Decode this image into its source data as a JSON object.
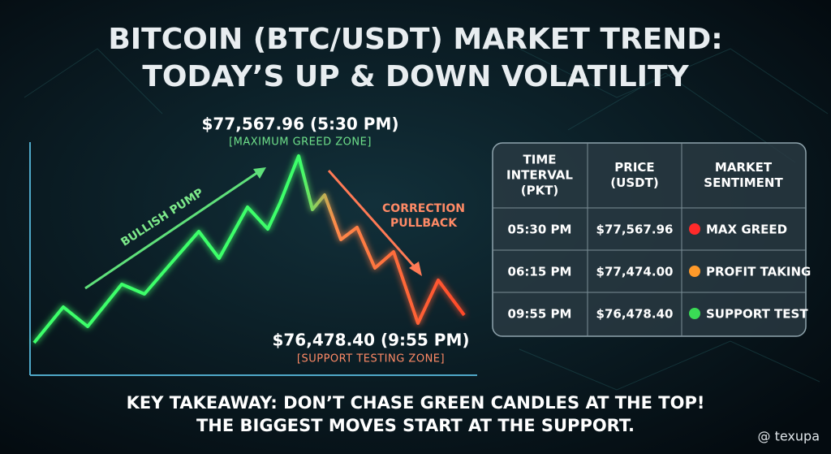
{
  "header": {
    "title": [
      "BITCOIN (BTC/USDT) MARKET TREND:",
      "TODAY’S UP & DOWN VOLATILITY"
    ]
  },
  "chart": {
    "bullish_label": "BULLISH PUMP",
    "correction_label": [
      "CORRECTION",
      "PULLBACK"
    ],
    "peak": {
      "label": "$77,567.96 (5:30 PM)",
      "zone": "[MAXIMUM GREED ZONE]"
    },
    "low": {
      "label": "$76,478.40 (9:55 PM)",
      "zone": "[SUPPORT TESTING ZONE]"
    }
  },
  "table": {
    "headers": [
      [
        "TIME",
        "INTERVAL",
        "(PKT)"
      ],
      [
        "PRICE",
        "(USDT)"
      ],
      [
        "MARKET",
        "SENTIMENT"
      ]
    ],
    "rows": [
      [
        "05:30 PM",
        "$77,567.96",
        "MAX GREED"
      ],
      [
        "06:15 PM",
        "$77,474.00",
        "PROFIT TAKING"
      ],
      [
        "09:55 PM",
        "$76,478.40",
        "SUPPORT TEST"
      ]
    ]
  },
  "footer": {
    "takeaway": [
      "KEY TAKEAWAY: DON’T CHASE GREEN CANDLES AT THE TOP!",
      "THE BIGGEST MOVES START AT THE SUPPORT."
    ],
    "watermark": "@ texupa"
  }
}
